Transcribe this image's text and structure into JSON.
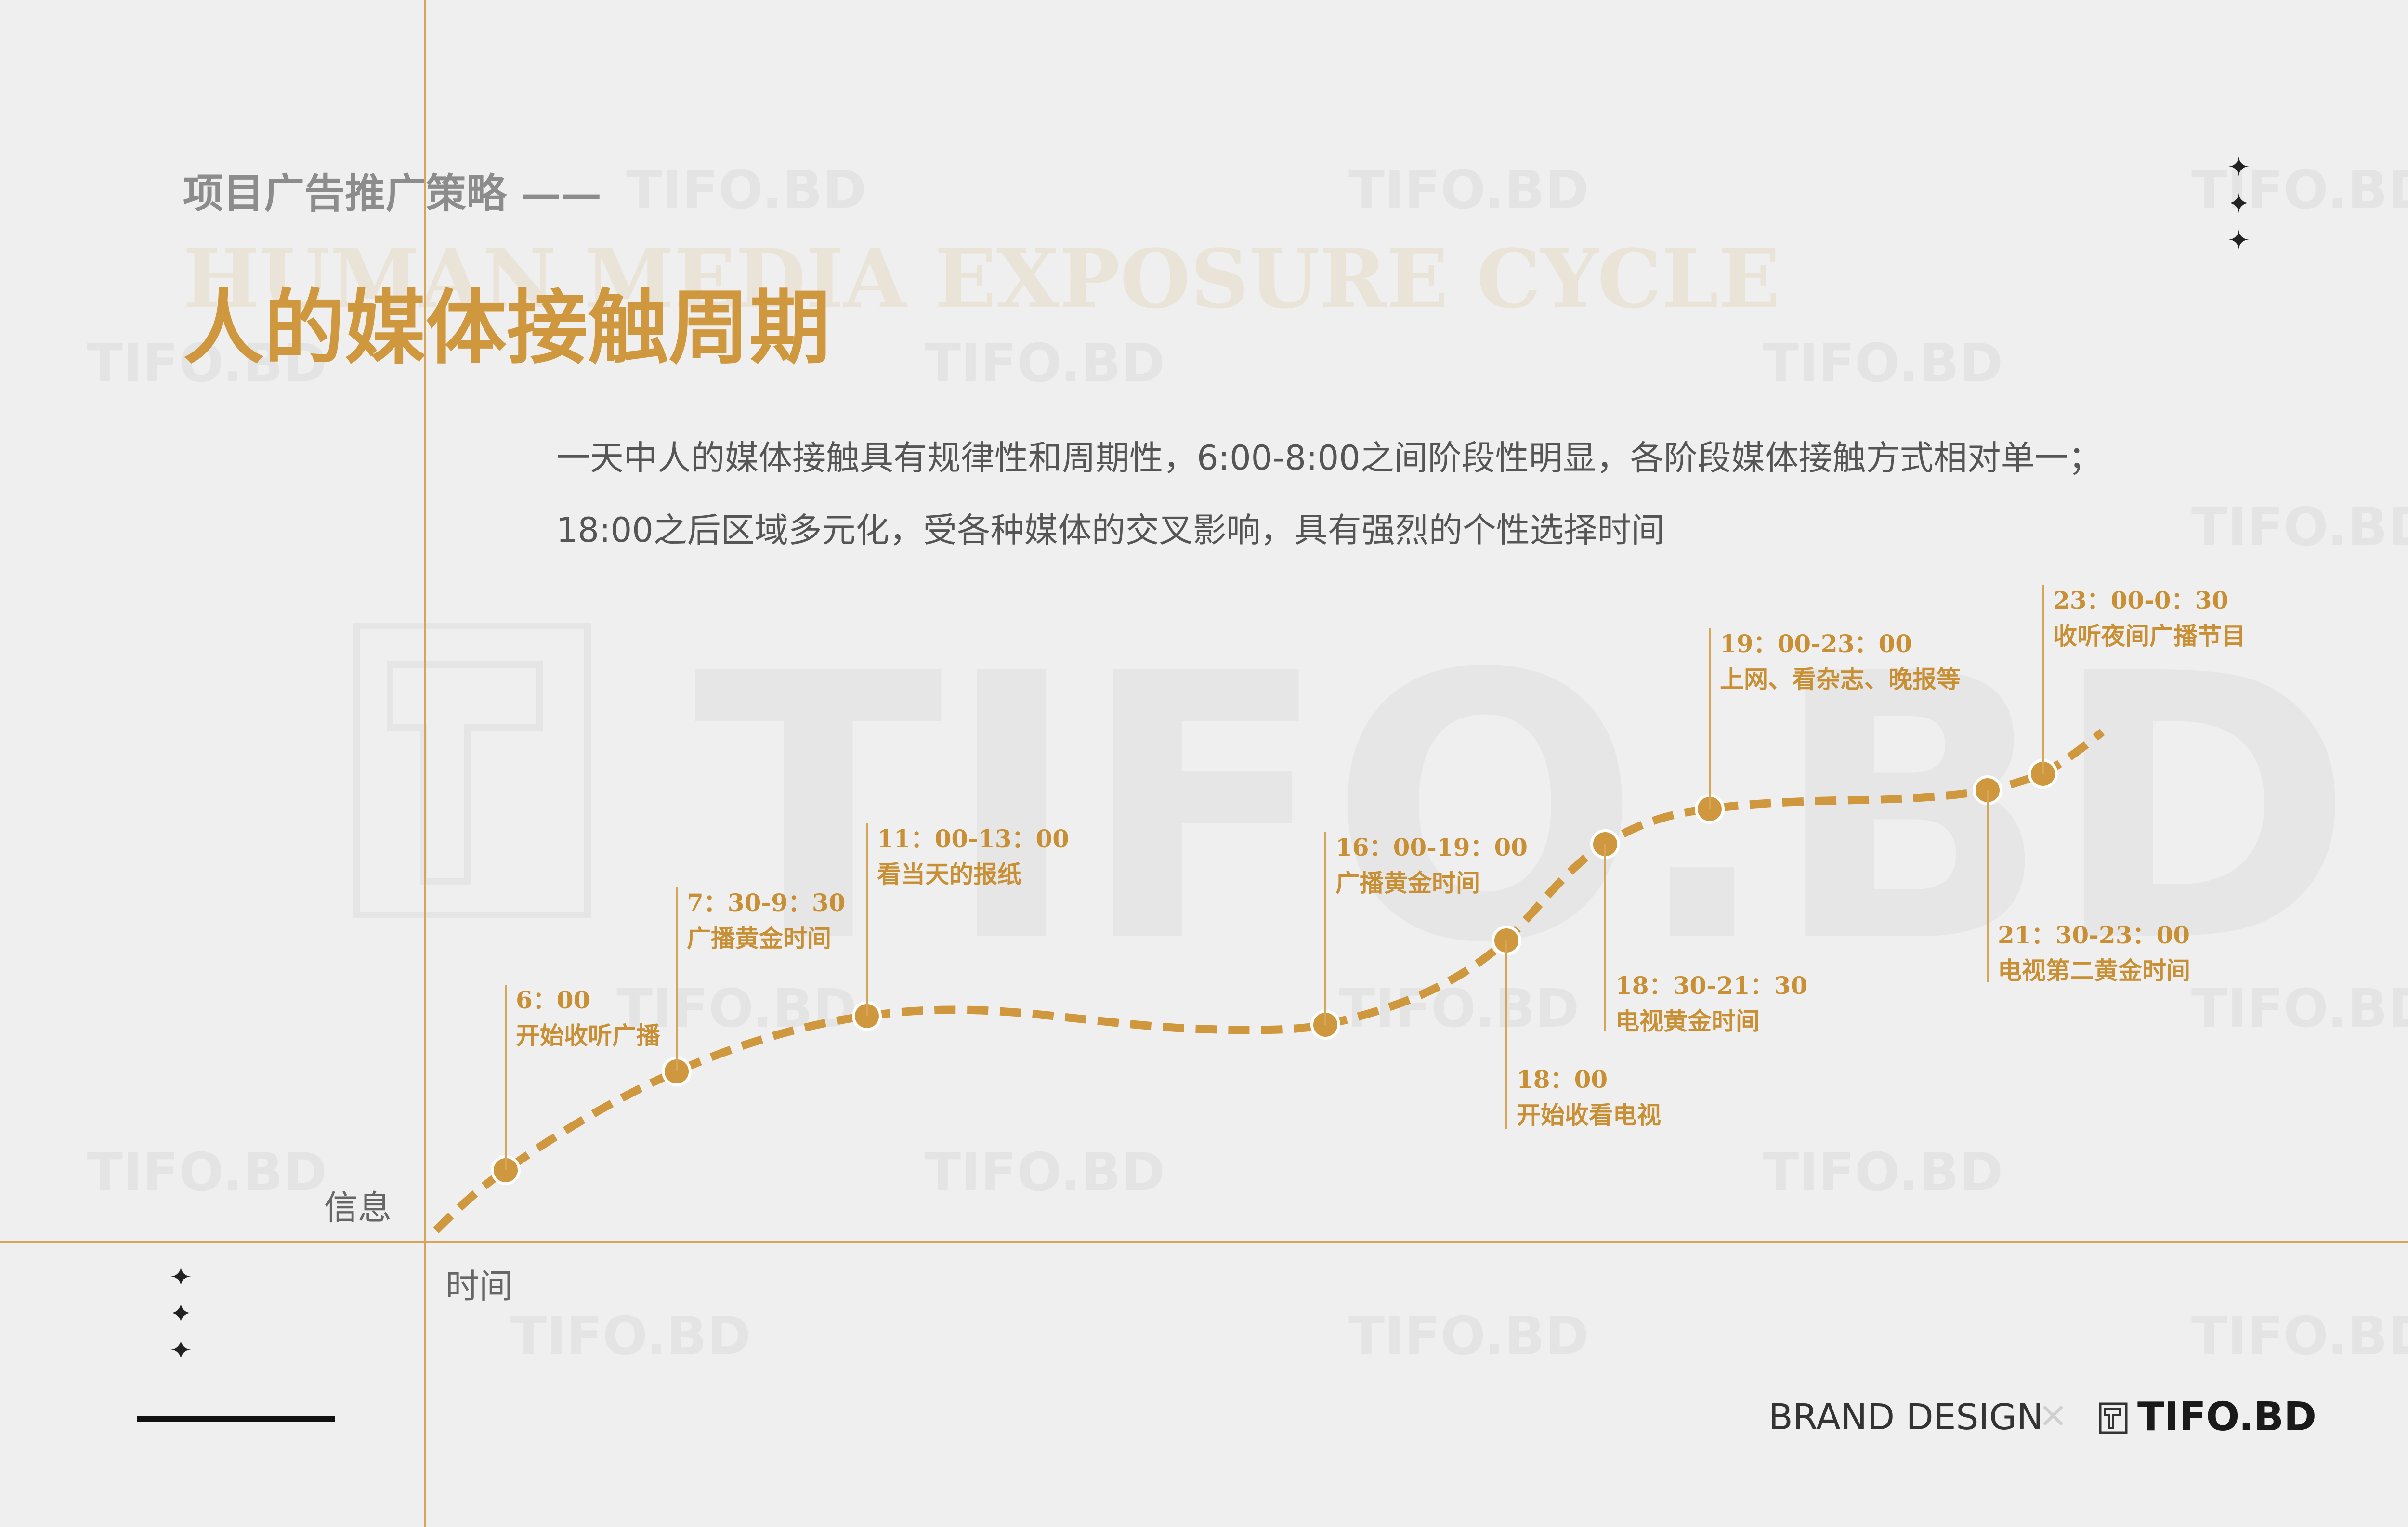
{
  "header": {
    "subtitle": "项目广告推广策略 ——",
    "ghost_title": "HUMAN MEDIA EXPOSURE CYCLE",
    "title": "人的媒体接触周期"
  },
  "description": [
    "一天中人的媒体接触具有规律性和周期性，6:00-8:00之间阶段性明显，各阶段媒体接触方式相对单一；",
    "18:00之后区域多元化，受各种媒体的交叉影响，具有强烈的个性选择时间"
  ],
  "axis": {
    "y_label": "信息",
    "x_label": "时间"
  },
  "events": [
    {
      "time": "6：00",
      "desc": "开始收听广播",
      "position": "above"
    },
    {
      "time": "7：30-9：30",
      "desc": "广播黄金时间",
      "position": "above"
    },
    {
      "time": "11：00-13：00",
      "desc": "看当天的报纸",
      "position": "above"
    },
    {
      "time": "16：00-19：00",
      "desc": "广播黄金时间",
      "position": "above"
    },
    {
      "time": "18：00",
      "desc": "开始收看电视",
      "position": "below"
    },
    {
      "time": "18：30-21：30",
      "desc": "电视黄金时间",
      "position": "below"
    },
    {
      "time": "19：00-23：00",
      "desc": "上网、看杂志、晚报等",
      "position": "above"
    },
    {
      "time": "21：30-23：00",
      "desc": "电视第二黄金时间",
      "position": "below"
    },
    {
      "time": "23：00-0：30",
      "desc": "收听夜间广播节目",
      "position": "above"
    }
  ],
  "footer": {
    "brand": "BRAND DESIGN",
    "separator": "×",
    "logo": "TIFO.BD"
  },
  "watermark": "TIFO.BD",
  "colors": {
    "accent": "#d0983e",
    "background": "#efefef",
    "line": "#d6a55a",
    "text": "#555555"
  }
}
